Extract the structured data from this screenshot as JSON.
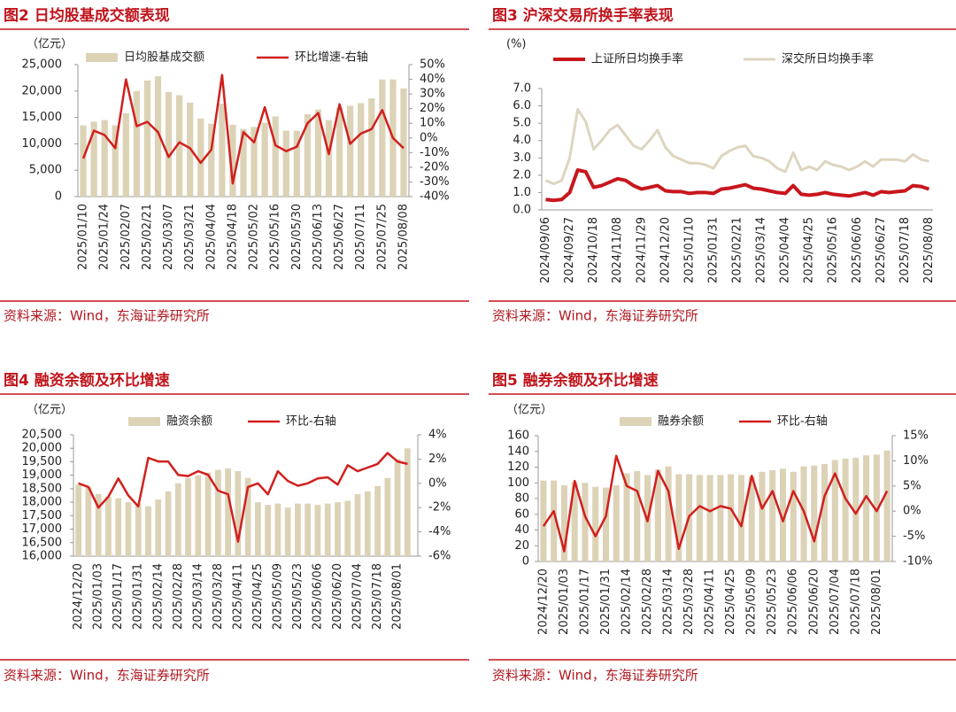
{
  "chart_data": [
    {
      "type": "combo",
      "title": "图2 日均股基成交额表现",
      "unit_label": "（亿元）",
      "source": "资料来源：Wind，东海证券研究所",
      "categories": [
        "2025/01/10",
        null,
        "2025/01/24",
        null,
        "2025/02/07",
        null,
        "2025/02/21",
        null,
        "2025/03/07",
        null,
        "2025/03/21",
        null,
        "2025/04/04",
        null,
        "2025/04/18",
        null,
        "2025/05/02",
        null,
        "2025/05/16",
        null,
        "2025/05/30",
        null,
        "2025/06/13",
        null,
        "2025/06/27",
        null,
        "2025/07/11",
        null,
        "2025/07/25",
        null,
        "2025/08/08"
      ],
      "series": [
        {
          "name": "日均股基成交额",
          "type": "bar",
          "color": "#dcd2b6",
          "values": [
            13500,
            14200,
            14500,
            13500,
            15800,
            20000,
            22000,
            22800,
            19800,
            19200,
            17800,
            14800,
            13800,
            17600,
            13600,
            12800,
            13200,
            14000,
            15200,
            12500,
            12500,
            15600,
            16500,
            14500,
            16800,
            17200,
            17700,
            18600,
            22200,
            22200,
            20500
          ]
        },
        {
          "name": "环比增速-右轴",
          "type": "line",
          "axis": "y2",
          "color": "#d0201e",
          "values": [
            -14,
            5,
            2,
            -7,
            40,
            8,
            11,
            4,
            -13,
            -3,
            -7,
            -17,
            -8,
            43,
            -31,
            4,
            -3,
            21,
            -5,
            -9,
            -6,
            10,
            17,
            -11,
            23,
            -4,
            3,
            6,
            19,
            0,
            -7
          ]
        }
      ],
      "ylim": [
        0,
        25000
      ],
      "yticks": [
        0,
        {
          "value": 5000,
          "label": "5,000"
        },
        {
          "value": 10000,
          "label": "10,000"
        },
        {
          "value": 15000,
          "label": "15,000"
        },
        {
          "value": 20000,
          "label": "20,000"
        },
        {
          "value": 25000,
          "label": "25,000"
        }
      ],
      "y2lim": [
        -40,
        50
      ],
      "y2ticks": [
        {
          "value": -40,
          "label": "-40%"
        },
        {
          "value": -30,
          "label": "-30%"
        },
        {
          "value": -20,
          "label": "-20%"
        },
        {
          "value": -10,
          "label": "-10%"
        },
        {
          "value": 0,
          "label": "0%"
        },
        {
          "value": 10,
          "label": "10%"
        },
        {
          "value": 20,
          "label": "20%"
        },
        {
          "value": 30,
          "label": "30%"
        },
        {
          "value": 40,
          "label": "40%"
        },
        {
          "value": 50,
          "label": "50%"
        }
      ]
    },
    {
      "type": "line",
      "title": "图3 沪深交易所换手率表现",
      "unit_label": "(%)",
      "source": "资料来源：Wind，东海证券研究所",
      "categories": [
        "2024/09/06",
        null,
        null,
        "2024/09/27",
        null,
        null,
        "2024/10/18",
        null,
        null,
        "2024/11/08",
        null,
        null,
        "2024/11/29",
        null,
        null,
        "2024/12/20",
        null,
        null,
        "2025/01/10",
        null,
        null,
        "2025/01/31",
        null,
        null,
        "2025/02/21",
        null,
        null,
        "2025/03/14",
        null,
        null,
        "2025/04/04",
        null,
        null,
        "2025/04/25",
        null,
        null,
        "2025/05/16",
        null,
        null,
        "2025/06/06",
        null,
        null,
        "2025/06/27",
        null,
        null,
        "2025/07/18",
        null,
        null,
        "2025/08/08"
      ],
      "series": [
        {
          "name": "上证所日均换手率",
          "type": "line",
          "color": "#c8161d",
          "width": 4,
          "values": [
            0.6,
            0.55,
            0.6,
            1.0,
            2.3,
            2.2,
            1.3,
            1.4,
            1.6,
            1.8,
            1.7,
            1.4,
            1.2,
            1.3,
            1.4,
            1.1,
            1.05,
            1.05,
            0.95,
            1.0,
            1.0,
            0.95,
            1.2,
            1.25,
            1.35,
            1.45,
            1.25,
            1.2,
            1.1,
            1.0,
            0.95,
            1.4,
            0.9,
            0.85,
            0.9,
            1.0,
            0.9,
            0.85,
            0.8,
            0.9,
            1.0,
            0.85,
            1.05,
            1.0,
            1.05,
            1.1,
            1.4,
            1.35,
            1.2
          ]
        },
        {
          "name": "深交所日均换手率",
          "type": "line",
          "color": "#ddd5bf",
          "width": 3,
          "values": [
            1.7,
            1.5,
            1.7,
            3.0,
            5.8,
            5.1,
            3.5,
            4.0,
            4.6,
            4.9,
            4.3,
            3.7,
            3.5,
            4.0,
            4.6,
            3.6,
            3.1,
            2.9,
            2.7,
            2.7,
            2.6,
            2.4,
            3.1,
            3.4,
            3.6,
            3.7,
            3.1,
            3.0,
            2.8,
            2.4,
            2.2,
            3.3,
            2.3,
            2.5,
            2.3,
            2.8,
            2.6,
            2.5,
            2.3,
            2.5,
            2.8,
            2.5,
            2.9,
            2.9,
            2.9,
            2.8,
            3.2,
            2.9,
            2.8
          ]
        }
      ],
      "ylim": [
        0,
        7
      ],
      "yticks": [
        {
          "value": 0,
          "label": "0.0"
        },
        {
          "value": 1,
          "label": "1.0"
        },
        {
          "value": 2,
          "label": "2.0"
        },
        {
          "value": 3,
          "label": "3.0"
        },
        {
          "value": 4,
          "label": "4.0"
        },
        {
          "value": 5,
          "label": "5.0"
        },
        {
          "value": 6,
          "label": "6.0"
        },
        {
          "value": 7,
          "label": "7.0"
        }
      ]
    },
    {
      "type": "combo",
      "title": "图4 融资余额及环比增速",
      "unit_label": "（亿元）",
      "source": "资料来源：Wind，东海证券研究所",
      "categories": [
        "2024/12/20",
        null,
        "2025/01/03",
        null,
        "2025/01/17",
        null,
        "2025/01/31",
        null,
        "2025/02/14",
        null,
        "2025/02/28",
        null,
        "2025/03/14",
        null,
        "2025/03/28",
        null,
        "2025/04/11",
        null,
        "2025/04/25",
        null,
        "2025/05/09",
        null,
        "2025/05/23",
        null,
        "2025/06/06",
        null,
        "2025/06/20",
        null,
        "2025/07/04",
        null,
        "2025/07/18",
        null,
        "2025/08/01",
        null
      ],
      "series": [
        {
          "name": "融资余额",
          "type": "bar",
          "color": "#dcd2b6",
          "values": [
            18650,
            18550,
            18300,
            18200,
            18150,
            18000,
            17950,
            17850,
            18100,
            18400,
            18700,
            18900,
            19000,
            19100,
            19200,
            19250,
            19150,
            18900,
            18000,
            17900,
            17950,
            17800,
            17950,
            17950,
            17900,
            17950,
            18000,
            18050,
            18300,
            18400,
            18600,
            18900,
            19600,
            20000
          ]
        },
        {
          "name": "环比-右轴",
          "type": "line",
          "axis": "y2",
          "color": "#d0201e",
          "values": [
            0,
            -0.3,
            -2.0,
            -1.1,
            0.4,
            -1.0,
            -1.9,
            2.1,
            1.8,
            1.8,
            0.7,
            0.6,
            1.0,
            0.7,
            -0.6,
            -0.9,
            -4.8,
            -0.3,
            0,
            -0.9,
            1.0,
            0.2,
            -0.2,
            0,
            0.4,
            0.5,
            -0.1,
            1.5,
            1.0,
            1.3,
            1.6,
            2.5,
            1.8,
            1.6
          ]
        }
      ],
      "ylim": [
        16000,
        20500
      ],
      "yticks": [
        {
          "value": 16000,
          "label": "16,000"
        },
        {
          "value": 16500,
          "label": "16,500"
        },
        {
          "value": 17000,
          "label": "17,000"
        },
        {
          "value": 17500,
          "label": "17,500"
        },
        {
          "value": 18000,
          "label": "18,000"
        },
        {
          "value": 18500,
          "label": "18,500"
        },
        {
          "value": 19000,
          "label": "19,000"
        },
        {
          "value": 19500,
          "label": "19,500"
        },
        {
          "value": 20000,
          "label": "20,000"
        },
        {
          "value": 20500,
          "label": "20,500"
        }
      ],
      "y2lim": [
        -6,
        4
      ],
      "y2ticks": [
        {
          "value": -6,
          "label": "-6%"
        },
        {
          "value": -4,
          "label": "-4%"
        },
        {
          "value": -2,
          "label": "-2%"
        },
        {
          "value": 0,
          "label": "0%"
        },
        {
          "value": 2,
          "label": "2%"
        },
        {
          "value": 4,
          "label": "4%"
        }
      ]
    },
    {
      "type": "combo",
      "title": "图5 融券余额及环比增速",
      "unit_label": "（亿元）",
      "source": "资料来源：Wind，东海证券研究所",
      "categories": [
        "2024/12/20",
        null,
        "2025/01/03",
        null,
        "2025/01/17",
        null,
        "2025/01/31",
        null,
        "2025/02/14",
        null,
        "2025/02/28",
        null,
        "2025/03/14",
        null,
        "2025/03/28",
        null,
        "2025/04/11",
        null,
        "2025/04/25",
        null,
        "2025/05/09",
        null,
        "2025/05/23",
        null,
        "2025/06/06",
        null,
        "2025/06/20",
        null,
        "2025/07/04",
        null,
        "2025/07/18",
        null,
        "2025/08/01",
        null
      ],
      "series": [
        {
          "name": "融券余额",
          "type": "bar",
          "color": "#dcd2b6",
          "values": [
            103,
            103,
            97,
            101,
            100,
            95,
            94,
            97,
            112,
            115,
            110,
            117,
            121,
            111,
            111,
            110,
            110,
            110,
            111,
            110,
            108,
            114,
            116,
            118,
            114,
            121,
            122,
            124,
            129,
            131,
            132,
            135,
            136,
            141
          ]
        },
        {
          "name": "环比-右轴",
          "type": "line",
          "axis": "y2",
          "color": "#d0201e",
          "values": [
            -3,
            0,
            -8,
            6,
            -1,
            -5,
            -1,
            11,
            5,
            4,
            -2,
            8,
            4,
            -7.5,
            -1,
            1,
            0,
            1,
            0.5,
            -3,
            7,
            0.5,
            4,
            -2,
            4,
            0,
            -6,
            3,
            7.5,
            2.5,
            -0.5,
            3,
            0,
            4
          ]
        }
      ],
      "ylim": [
        0,
        160
      ],
      "yticks": [
        0,
        20,
        40,
        60,
        80,
        100,
        120,
        140,
        160
      ],
      "y2lim": [
        -10,
        15
      ],
      "y2ticks": [
        {
          "value": -10,
          "label": "-10%"
        },
        {
          "value": -5,
          "label": "-5%"
        },
        {
          "value": 0,
          "label": "0%"
        },
        {
          "value": 5,
          "label": "5%"
        },
        {
          "value": 10,
          "label": "10%"
        },
        {
          "value": 15,
          "label": "15%"
        }
      ]
    }
  ]
}
